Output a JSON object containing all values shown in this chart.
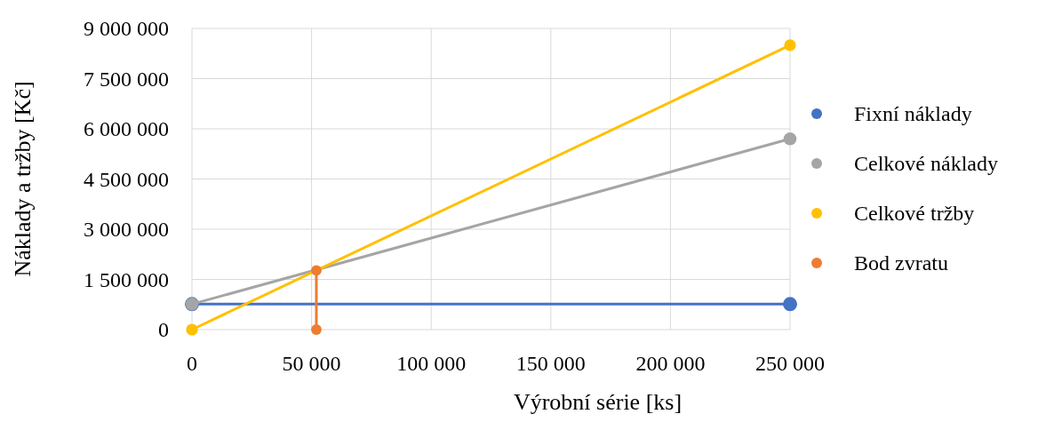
{
  "chart_data": {
    "type": "line",
    "xlabel": "Výrobní série [ks]",
    "ylabel": "Náklady a tržby [Kč]",
    "xlim": [
      0,
      250000
    ],
    "xticks": [
      0,
      {
        "value": 50000,
        "label": "50 000"
      },
      {
        "value": 100000,
        "label": "100 000"
      },
      {
        "value": 150000,
        "label": "150 000"
      },
      {
        "value": 200000,
        "label": "200 000"
      },
      {
        "value": 250000,
        "label": "250 000"
      }
    ],
    "ylim": [
      0,
      9000000
    ],
    "yticks": [
      0,
      {
        "value": 1500000,
        "label": "1 500 000"
      },
      {
        "value": 3000000,
        "label": "3 000 000"
      },
      {
        "value": 4500000,
        "label": "4 500 000"
      },
      {
        "value": 6000000,
        "label": "6 000 000"
      },
      {
        "value": 7500000,
        "label": "7 500 000"
      },
      {
        "value": 9000000,
        "label": "9 000 000"
      }
    ],
    "grid": true,
    "legend": "right",
    "marker": "circle",
    "line_style": "solid",
    "series": [
      {
        "name": "Fixní náklady",
        "color": "#4472c4",
        "x": [
          0,
          250000
        ],
        "values": [
          760000,
          760000
        ]
      },
      {
        "name": "Celkové náklady",
        "color": "#a5a5a5",
        "x": [
          0,
          250000
        ],
        "values": [
          760000,
          5700000
        ]
      },
      {
        "name": "Celkové tržby",
        "color": "#ffc000",
        "x": [
          0,
          250000
        ],
        "values": [
          0,
          8500000
        ]
      },
      {
        "name": "Bod zvratu",
        "color": "#ed7d31",
        "x": [
          52000,
          52000
        ],
        "values": [
          0,
          1770000
        ]
      }
    ]
  }
}
